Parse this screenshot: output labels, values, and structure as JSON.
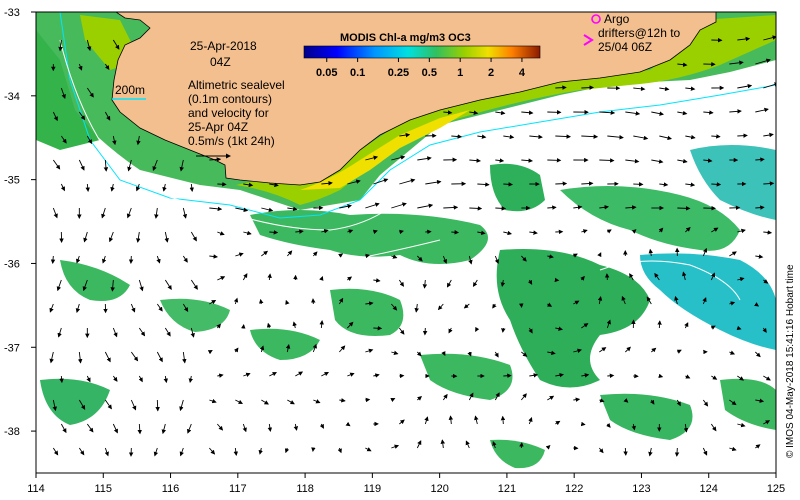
{
  "map": {
    "date": "25-Apr-2018",
    "time": "04Z",
    "contour_note_lines": [
      "Altimetric sealevel",
      "(0.1m contours)",
      "and velocity for",
      "25-Apr 04Z"
    ],
    "velocity_scale_label": "0.5m/s (1kt 24h)",
    "isobath_label": "200m",
    "colorbar": {
      "title": "MODIS Chl-a mg/m3 OC3",
      "tick_labels": [
        "0.05",
        "0.1",
        "0.25",
        "0.5",
        "1",
        "2",
        "4"
      ],
      "tick_values": [
        0.05,
        0.1,
        0.25,
        0.5,
        1,
        2,
        4
      ],
      "range": [
        0.03,
        6
      ]
    },
    "legend": {
      "argo_label": "Argo",
      "drifter_label_lines": [
        "drifters@12h to",
        "25/04 06Z"
      ],
      "marker_color": "#ff00ff"
    },
    "credit": "© IMOS 04-May-2018 15:41:16 Hobart time",
    "x_axis": {
      "ticks": [
        "114",
        "115",
        "116",
        "117",
        "118",
        "119",
        "120",
        "121",
        "122",
        "123",
        "124",
        "125"
      ],
      "range": [
        114,
        125
      ],
      "unit": "longitude E"
    },
    "y_axis": {
      "ticks": [
        "-33",
        "-34",
        "-35",
        "-36",
        "-37",
        "-38"
      ],
      "range": [
        -38.5,
        -33
      ],
      "unit": "latitude"
    },
    "colors": {
      "land": "#f4bf8f",
      "coast": "#000000",
      "isobath": "#00e5ff",
      "contour": "#ffffff",
      "arrow": "#000000",
      "ocean_no_data": "#ffffff"
    }
  }
}
